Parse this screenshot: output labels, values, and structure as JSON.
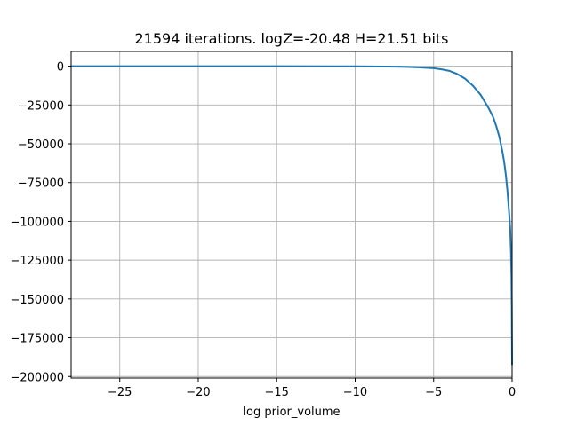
{
  "chart_data": {
    "type": "line",
    "title": "21594 iterations. logZ=-20.48 H=21.51 bits",
    "xlabel": "log prior_volume",
    "ylabel": "",
    "xlim": [
      -28.1,
      0
    ],
    "ylim": [
      -201000,
      9500
    ],
    "grid": true,
    "xticks": [
      -25,
      -20,
      -15,
      -10,
      -5,
      0
    ],
    "xtick_labels": [
      "−25",
      "−20",
      "−15",
      "−10",
      "−5",
      "0"
    ],
    "yticks": [
      0,
      -25000,
      -50000,
      -75000,
      -100000,
      -125000,
      -150000,
      -175000,
      -200000
    ],
    "ytick_labels": [
      "0",
      "−25000",
      "−50000",
      "−75000",
      "−100000",
      "−125000",
      "−150000",
      "−175000",
      "−200000"
    ],
    "series": [
      {
        "color": "#1f77b4",
        "x": [
          -28.1,
          -25,
          -20,
          -15,
          -10,
          -8,
          -7,
          -6,
          -5,
          -4.5,
          -4,
          -3.5,
          -3,
          -2.5,
          -2,
          -1.5,
          -1.2,
          -1.0,
          -0.8,
          -0.6,
          -0.5,
          -0.4,
          -0.3,
          -0.2,
          -0.12,
          -0.07,
          -0.04,
          -0.02,
          -0.01,
          0
        ],
        "y": [
          0,
          0,
          0,
          0,
          -100,
          -250,
          -400,
          -700,
          -1300,
          -2000,
          -3000,
          -5000,
          -8000,
          -12500,
          -18500,
          -27000,
          -33000,
          -39000,
          -46000,
          -56000,
          -62000,
          -70000,
          -80000,
          -93000,
          -105000,
          -120000,
          -135000,
          -155000,
          -175000,
          -192000
        ]
      }
    ]
  }
}
